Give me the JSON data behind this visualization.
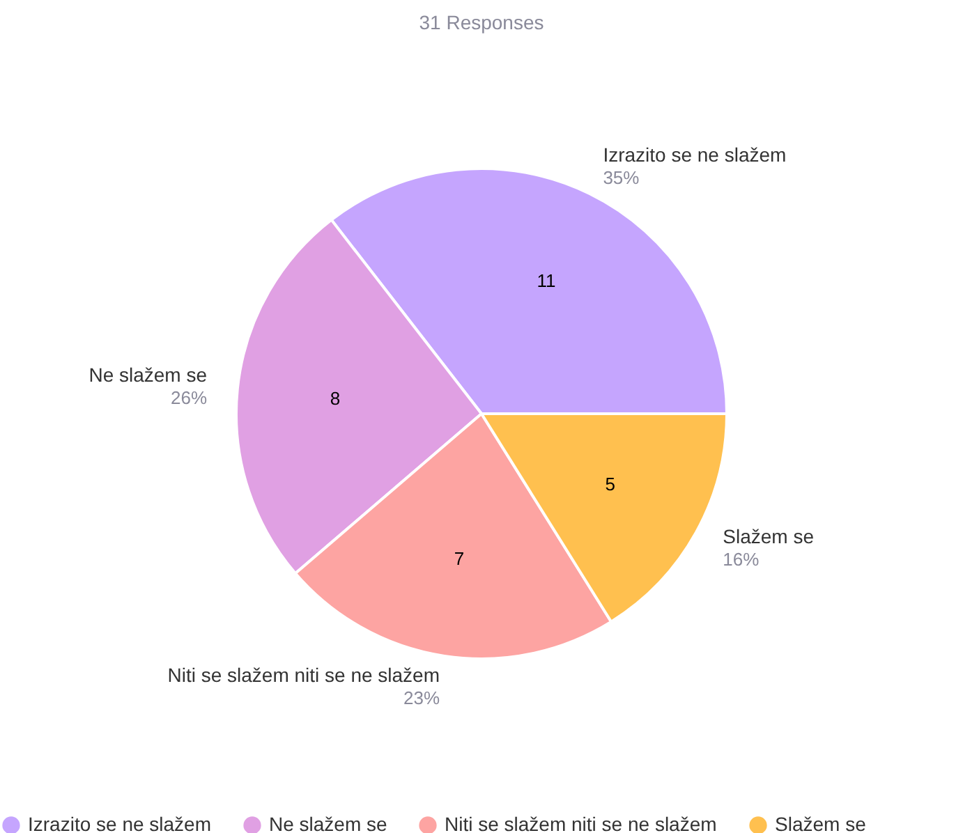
{
  "chart_data": {
    "type": "pie",
    "title": "31 Responses",
    "categories": [
      "Izrazito se ne slažem",
      "Ne slažem se",
      "Niti se slažem niti se ne slažem",
      "Slažem se"
    ],
    "values": [
      11,
      8,
      7,
      5
    ],
    "colors": [
      "#c5a5fe",
      "#e0a0e3",
      "#fda4a2",
      "#ffc04f"
    ],
    "data_labels": true,
    "annotations": [
      {
        "text": "35%",
        "x": "Izrazito se ne slažem"
      },
      {
        "text": "26%",
        "x": "Ne slažem se"
      },
      {
        "text": "23%",
        "x": "Niti se slažem niti se ne slažem"
      },
      {
        "text": "16%",
        "x": "Slažem se"
      }
    ],
    "legend": "bottom"
  }
}
